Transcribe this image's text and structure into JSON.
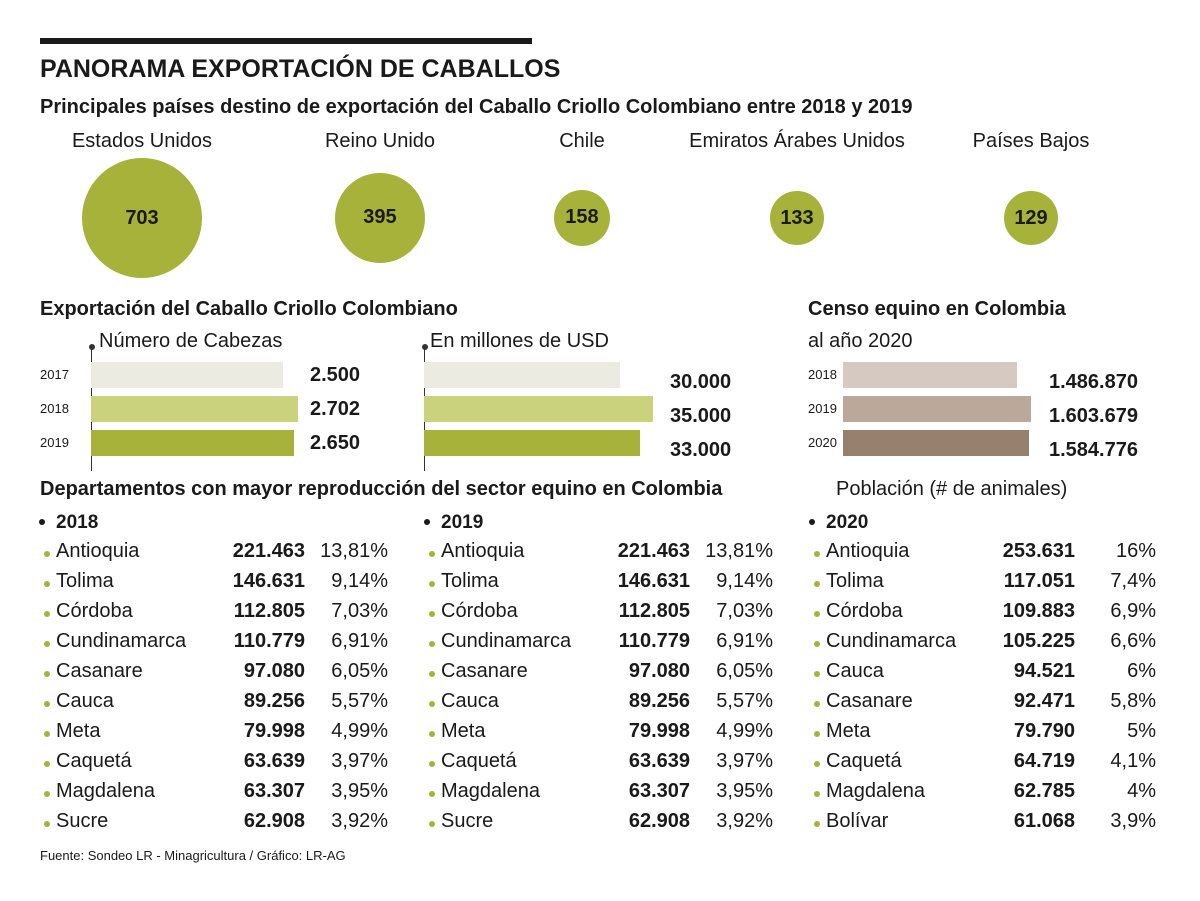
{
  "title": "PANORAMA EXPORTACIÓN DE CABALLOS",
  "colors": {
    "green": "#a7b23a",
    "green_light": "#cad27e",
    "green_pale": "#ecebe1",
    "brown_dark": "#98806e",
    "brown_mid": "#bca89a",
    "brown_light": "#d6c9c2",
    "axis": "#333333"
  },
  "chart_data": [
    {
      "type": "bubble",
      "title": "Principales países destino de exportación del Caballo Criollo Colombiano entre 2018 y 2019",
      "categories": [
        "Estados Unidos",
        "Reino Unido",
        "Chile",
        "Emiratos Árabes Unidos",
        "Países Bajos"
      ],
      "values": [
        703,
        395,
        158,
        133,
        129
      ]
    },
    {
      "type": "bar",
      "title": "Exportación del Caballo Criollo Colombiano",
      "subtitle": "Número de Cabezas",
      "categories": [
        "2017",
        "2018",
        "2019"
      ],
      "values": [
        2500,
        2702,
        2650
      ],
      "labels": [
        "2.500",
        "2.702",
        "2.650"
      ]
    },
    {
      "type": "bar",
      "subtitle": "En millones de USD",
      "categories": [
        "2017",
        "2018",
        "2019"
      ],
      "values": [
        30000,
        35000,
        33000
      ],
      "labels": [
        "30.000",
        "35.000",
        "33.000"
      ]
    },
    {
      "type": "bar",
      "title": "Censo equino en Colombia",
      "subtitle": "al año 2020",
      "categories": [
        "2018",
        "2019",
        "2020"
      ],
      "values": [
        1486870,
        1603679,
        1584776
      ],
      "labels": [
        "1.486.870",
        "1.603.679",
        "1.584.776"
      ]
    },
    {
      "type": "table",
      "title": "Departamentos con mayor reproducción del sector equino en Colombia",
      "subtitle": "Población (# de animales)",
      "tables": [
        {
          "year": "2018",
          "rows": [
            [
              "Antioquia",
              "221.463",
              "13,81%"
            ],
            [
              "Tolima",
              "146.631",
              "9,14%"
            ],
            [
              "Córdoba",
              "112.805",
              "7,03%"
            ],
            [
              "Cundinamarca",
              "110.779",
              "6,91%"
            ],
            [
              "Casanare",
              "97.080",
              "6,05%"
            ],
            [
              "Cauca",
              "89.256",
              "5,57%"
            ],
            [
              "Meta",
              "79.998",
              "4,99%"
            ],
            [
              "Caquetá",
              "63.639",
              "3,97%"
            ],
            [
              "Magdalena",
              "63.307",
              "3,95%"
            ],
            [
              "Sucre",
              "62.908",
              "3,92%"
            ]
          ]
        },
        {
          "year": "2019",
          "rows": [
            [
              "Antioquia",
              "221.463",
              "13,81%"
            ],
            [
              "Tolima",
              "146.631",
              "9,14%"
            ],
            [
              "Córdoba",
              "112.805",
              "7,03%"
            ],
            [
              "Cundinamarca",
              "110.779",
              "6,91%"
            ],
            [
              "Casanare",
              "97.080",
              "6,05%"
            ],
            [
              "Cauca",
              "89.256",
              "5,57%"
            ],
            [
              "Meta",
              "79.998",
              "4,99%"
            ],
            [
              "Caquetá",
              "63.639",
              "3,97%"
            ],
            [
              "Magdalena",
              "63.307",
              "3,95%"
            ],
            [
              "Sucre",
              "62.908",
              "3,92%"
            ]
          ]
        },
        {
          "year": "2020",
          "rows": [
            [
              "Antioquia",
              "253.631",
              "16%"
            ],
            [
              "Tolima",
              "117.051",
              "7,4%"
            ],
            [
              "Córdoba",
              "109.883",
              "6,9%"
            ],
            [
              "Cundinamarca",
              "105.225",
              "6,6%"
            ],
            [
              "Cauca",
              "94.521",
              "6%"
            ],
            [
              "Casanare",
              "92.471",
              "5,8%"
            ],
            [
              "Meta",
              "79.790",
              "5%"
            ],
            [
              "Caquetá",
              "64.719",
              "4,1%"
            ],
            [
              "Magdalena",
              "62.785",
              "4%"
            ],
            [
              "Bolívar",
              "61.068",
              "3,9%"
            ]
          ]
        }
      ]
    }
  ],
  "source": "Fuente: Sondeo LR - Minagricultura  / Gráfico: LR-AG"
}
